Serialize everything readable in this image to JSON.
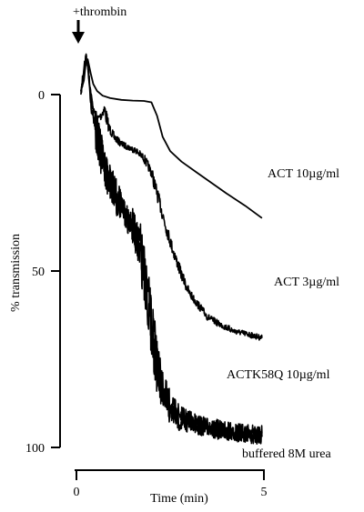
{
  "chart_data": {
    "type": "line",
    "title": "",
    "xlabel": "Time (min)",
    "ylabel": "% transmission",
    "xlim": [
      0,
      5
    ],
    "ylim": [
      0,
      100
    ],
    "y_inverted": true,
    "x_ticks": [
      {
        "value": 0,
        "label": "0"
      },
      {
        "value": 5,
        "label": "5"
      }
    ],
    "y_ticks": [
      {
        "value": 0,
        "label": "0"
      },
      {
        "value": 50,
        "label": "50"
      },
      {
        "value": 100,
        "label": "100"
      }
    ],
    "grid": false,
    "legend": "none",
    "line_color": "#000000",
    "annotation": {
      "label": "+thrombin",
      "x": 0.1
    },
    "series": [
      {
        "name": "ACT 10µg/ml",
        "noise": 0,
        "values": [
          [
            0.12,
            -1
          ],
          [
            0.2,
            -4
          ],
          [
            0.25,
            -9
          ],
          [
            0.3,
            -10
          ],
          [
            0.38,
            -6
          ],
          [
            0.45,
            -3
          ],
          [
            0.55,
            -1
          ],
          [
            0.7,
            0.3
          ],
          [
            0.9,
            1
          ],
          [
            1.2,
            1.5
          ],
          [
            1.5,
            1.7
          ],
          [
            1.8,
            1.8
          ],
          [
            2.0,
            2.2
          ],
          [
            2.15,
            6
          ],
          [
            2.3,
            12
          ],
          [
            2.5,
            16
          ],
          [
            2.8,
            19
          ],
          [
            3.2,
            22
          ],
          [
            3.6,
            25
          ],
          [
            4.0,
            28
          ],
          [
            4.5,
            31.5
          ],
          [
            4.95,
            35
          ]
        ]
      },
      {
        "name": "ACT 3µg/ml",
        "noise": 1.2,
        "values": [
          [
            0.12,
            -1
          ],
          [
            0.2,
            -5
          ],
          [
            0.25,
            -10
          ],
          [
            0.3,
            -9
          ],
          [
            0.35,
            -3
          ],
          [
            0.45,
            4
          ],
          [
            0.55,
            7
          ],
          [
            0.65,
            6
          ],
          [
            0.75,
            4
          ],
          [
            0.85,
            9
          ],
          [
            1.0,
            12
          ],
          [
            1.2,
            14
          ],
          [
            1.4,
            15
          ],
          [
            1.6,
            16
          ],
          [
            1.8,
            18
          ],
          [
            2.0,
            22
          ],
          [
            2.2,
            30
          ],
          [
            2.4,
            38
          ],
          [
            2.6,
            45
          ],
          [
            2.8,
            51
          ],
          [
            3.0,
            56
          ],
          [
            3.2,
            59
          ],
          [
            3.5,
            63
          ],
          [
            3.8,
            65
          ],
          [
            4.2,
            67
          ],
          [
            4.6,
            68
          ],
          [
            4.95,
            69
          ]
        ]
      },
      {
        "name": "ACTK58Q 10µg/ml",
        "noise": 3.5,
        "values": [
          [
            0.12,
            -1
          ],
          [
            0.2,
            -6
          ],
          [
            0.25,
            -10
          ],
          [
            0.3,
            -8
          ],
          [
            0.4,
            4
          ],
          [
            0.55,
            12
          ],
          [
            0.7,
            18
          ],
          [
            0.9,
            24
          ],
          [
            1.1,
            29
          ],
          [
            1.3,
            33
          ],
          [
            1.5,
            37
          ],
          [
            1.7,
            43
          ],
          [
            1.85,
            52
          ],
          [
            2.0,
            64
          ],
          [
            2.15,
            75
          ],
          [
            2.3,
            83
          ],
          [
            2.5,
            88
          ],
          [
            2.8,
            91
          ],
          [
            3.2,
            93
          ],
          [
            3.6,
            94
          ],
          [
            4.0,
            95
          ],
          [
            4.5,
            95.5
          ],
          [
            4.95,
            96
          ]
        ]
      },
      {
        "name": "buffered 8M urea",
        "noise": 3.5,
        "values": [
          [
            0.12,
            -1
          ],
          [
            0.2,
            -7
          ],
          [
            0.25,
            -11
          ],
          [
            0.3,
            -9
          ],
          [
            0.4,
            2
          ],
          [
            0.55,
            12
          ],
          [
            0.7,
            20
          ],
          [
            0.9,
            26
          ],
          [
            1.1,
            31
          ],
          [
            1.3,
            34
          ],
          [
            1.5,
            38
          ],
          [
            1.7,
            45
          ],
          [
            1.85,
            55
          ],
          [
            2.0,
            67
          ],
          [
            2.15,
            78
          ],
          [
            2.3,
            86
          ],
          [
            2.5,
            90
          ],
          [
            2.8,
            93
          ],
          [
            3.2,
            94
          ],
          [
            3.6,
            95
          ],
          [
            4.0,
            96
          ],
          [
            4.5,
            96.5
          ],
          [
            4.95,
            97
          ]
        ]
      }
    ]
  }
}
